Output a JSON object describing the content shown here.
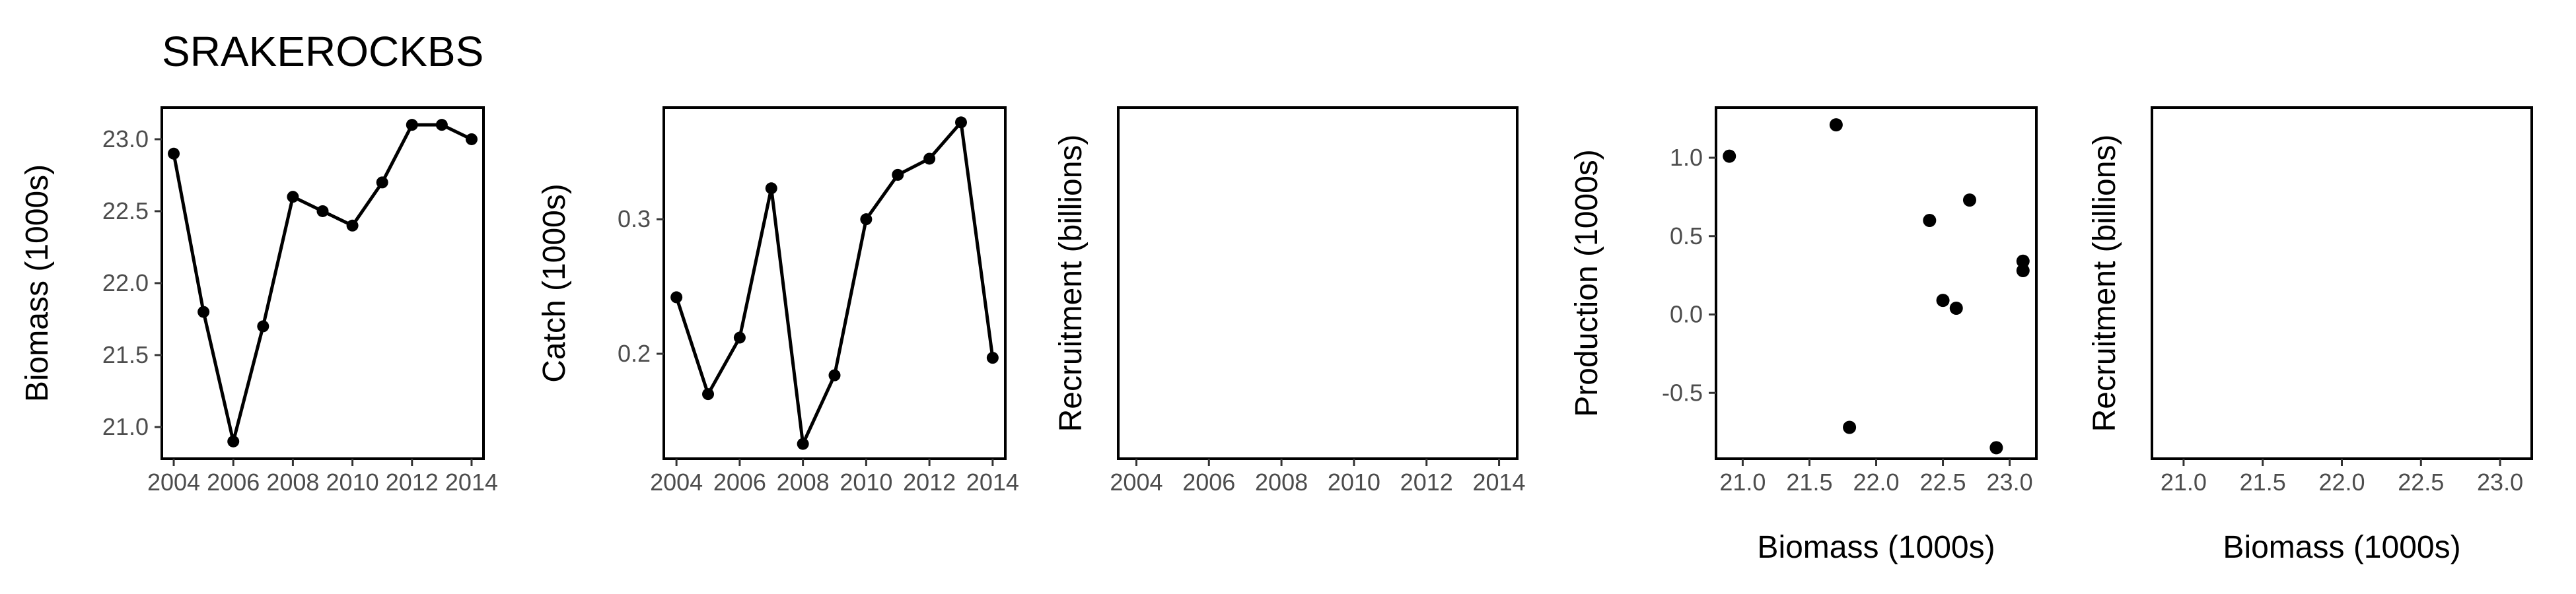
{
  "title": "SRAKEROCKBS",
  "chart_data": [
    {
      "type": "line",
      "ylabel": "Biomass (1000s)",
      "xlabel": "",
      "x": [
        2004,
        2005,
        2006,
        2007,
        2008,
        2009,
        2010,
        2011,
        2012,
        2013,
        2014
      ],
      "y": [
        22.9,
        21.8,
        20.9,
        21.7,
        22.6,
        22.5,
        22.4,
        22.7,
        23.1,
        23.1,
        23.0
      ],
      "xlim": [
        2003.6,
        2014.4
      ],
      "ylim": [
        20.78,
        23.22
      ],
      "xticks": [
        2004,
        2006,
        2008,
        2010,
        2012,
        2014
      ],
      "xticklabels": [
        "2004",
        "2006",
        "2008",
        "2010",
        "2012",
        "2014"
      ],
      "yticks": [
        21.0,
        21.5,
        22.0,
        22.5,
        23.0
      ],
      "yticklabels": [
        "21.0",
        "21.5",
        "22.0",
        "22.5",
        "23.0"
      ],
      "grid": false
    },
    {
      "type": "line",
      "ylabel": "Catch (1000s)",
      "xlabel": "",
      "x": [
        2004,
        2005,
        2006,
        2007,
        2008,
        2009,
        2010,
        2011,
        2012,
        2013,
        2014
      ],
      "y": [
        0.242,
        0.17,
        0.212,
        0.323,
        0.133,
        0.184,
        0.3,
        0.333,
        0.345,
        0.372,
        0.197
      ],
      "xlim": [
        2003.6,
        2014.4
      ],
      "ylim": [
        0.122,
        0.383
      ],
      "xticks": [
        2004,
        2006,
        2008,
        2010,
        2012,
        2014
      ],
      "xticklabels": [
        "2004",
        "2006",
        "2008",
        "2010",
        "2012",
        "2014"
      ],
      "yticks": [
        0.2,
        0.3
      ],
      "yticklabels": [
        "0.2",
        "0.3"
      ],
      "grid": false
    },
    {
      "type": "line",
      "ylabel": "Recruitment (billions)",
      "xlabel": "",
      "x": [],
      "y": [],
      "xlim": [
        2003.5,
        2014.5
      ],
      "xticks": [
        2004,
        2006,
        2008,
        2010,
        2012,
        2014
      ],
      "xticklabels": [
        "2004",
        "2006",
        "2008",
        "2010",
        "2012",
        "2014"
      ],
      "yticks": [],
      "yticklabels": [],
      "grid": false
    },
    {
      "type": "scatter",
      "ylabel": "Production (1000s)",
      "xlabel": "Biomass (1000s)",
      "x": [
        20.9,
        21.7,
        21.8,
        22.4,
        22.5,
        22.6,
        22.7,
        22.9,
        23.1,
        23.1
      ],
      "y": [
        1.01,
        1.21,
        -0.72,
        0.6,
        0.09,
        0.04,
        0.73,
        -0.85,
        0.34,
        0.28
      ],
      "xlim": [
        20.8,
        23.2
      ],
      "ylim": [
        -0.92,
        1.32
      ],
      "xticks": [
        21.0,
        21.5,
        22.0,
        22.5,
        23.0
      ],
      "xticklabels": [
        "21.0",
        "21.5",
        "22.0",
        "22.5",
        "23.0"
      ],
      "yticks": [
        -0.5,
        0.0,
        0.5,
        1.0
      ],
      "yticklabels": [
        "-0.5",
        "0.0",
        "0.5",
        "1.0"
      ],
      "grid": false
    },
    {
      "type": "scatter",
      "ylabel": "Recruitment (billions)",
      "xlabel": "Biomass (1000s)",
      "x": [],
      "y": [],
      "xlim": [
        20.8,
        23.2
      ],
      "xticks": [
        21.0,
        21.5,
        22.0,
        22.5,
        23.0
      ],
      "xticklabels": [
        "21.0",
        "21.5",
        "22.0",
        "22.5",
        "23.0"
      ],
      "yticks": [],
      "yticklabels": [],
      "grid": false
    }
  ]
}
